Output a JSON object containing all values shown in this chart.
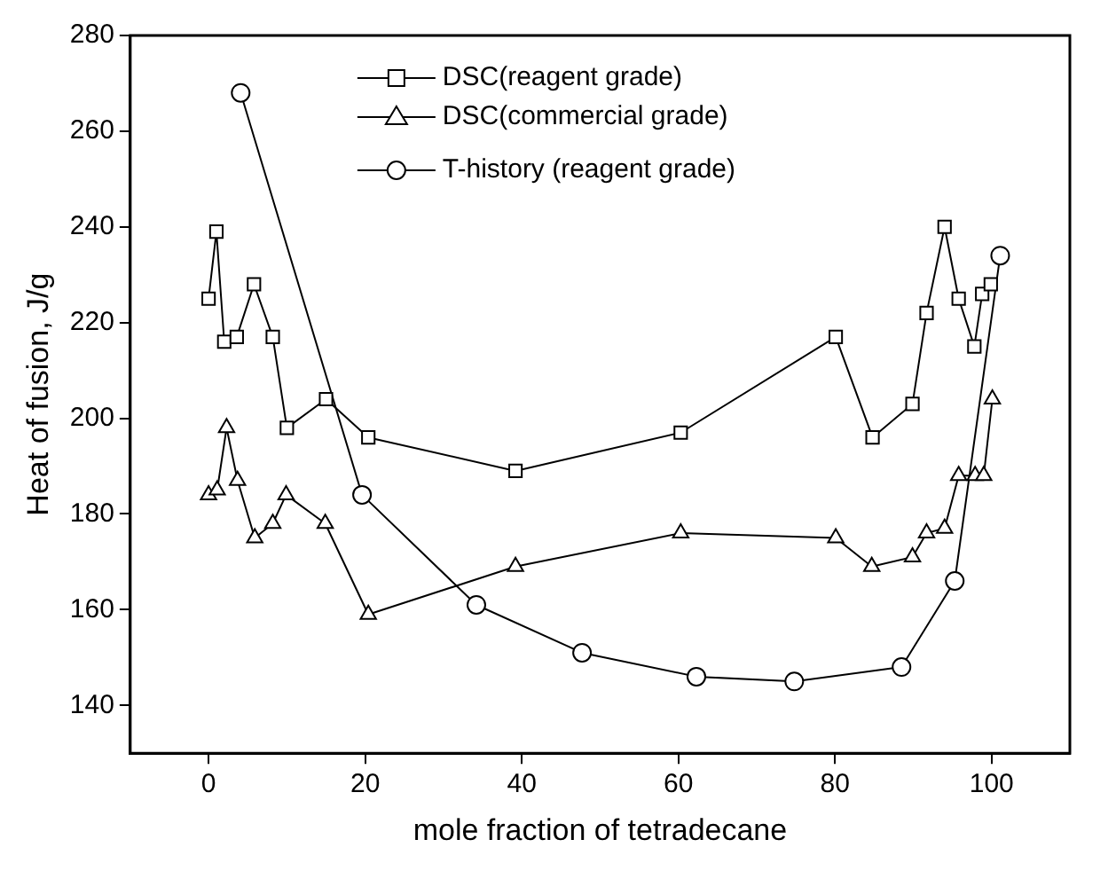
{
  "chart_data": {
    "type": "line",
    "xlabel": "mole fraction of tetradecane",
    "ylabel": "Heat of fusion, J/g",
    "xlim": [
      -10,
      110
    ],
    "xticks": [
      0,
      20,
      40,
      60,
      80,
      100
    ],
    "ylim": [
      130,
      280
    ],
    "yticks": [
      140,
      160,
      180,
      200,
      220,
      240,
      260,
      280
    ],
    "grid": false,
    "legend": "top",
    "line_style": "solid",
    "series": [
      {
        "name": "DSC(reagent grade)",
        "color": "#000000",
        "marker": "square",
        "x": [
          0,
          1,
          2,
          3.6,
          5.8,
          8.2,
          10,
          15,
          20.4,
          39.2,
          60.3,
          80.1,
          84.8,
          89.9,
          91.7,
          94,
          95.8,
          97.8,
          98.8,
          99.9
        ],
        "values": [
          225,
          239,
          216,
          217,
          228,
          217,
          198,
          204,
          196,
          189,
          197,
          217,
          196,
          203,
          222,
          240,
          225,
          215,
          226,
          228
        ]
      },
      {
        "name": "DSC(commercial grade)",
        "color": "#000000",
        "marker": "triangle",
        "x": [
          0,
          1.1,
          2.3,
          3.7,
          5.9,
          8.2,
          9.9,
          14.9,
          20.4,
          39.2,
          60.3,
          80.1,
          84.7,
          89.9,
          91.7,
          94,
          95.8,
          97.9,
          99,
          100.1
        ],
        "values": [
          184,
          185,
          198,
          187,
          175,
          178,
          184,
          178,
          159,
          169,
          176,
          175,
          169,
          171,
          176,
          177,
          188,
          188,
          188,
          204
        ]
      },
      {
        "name": "T-history (reagent grade)",
        "color": "#000000",
        "marker": "circle",
        "x": [
          4.1,
          19.6,
          34.2,
          47.7,
          62.3,
          74.8,
          88.5,
          95.3,
          101.1
        ],
        "values": [
          268,
          184,
          161,
          151,
          146,
          145,
          148,
          166,
          234
        ]
      }
    ]
  }
}
